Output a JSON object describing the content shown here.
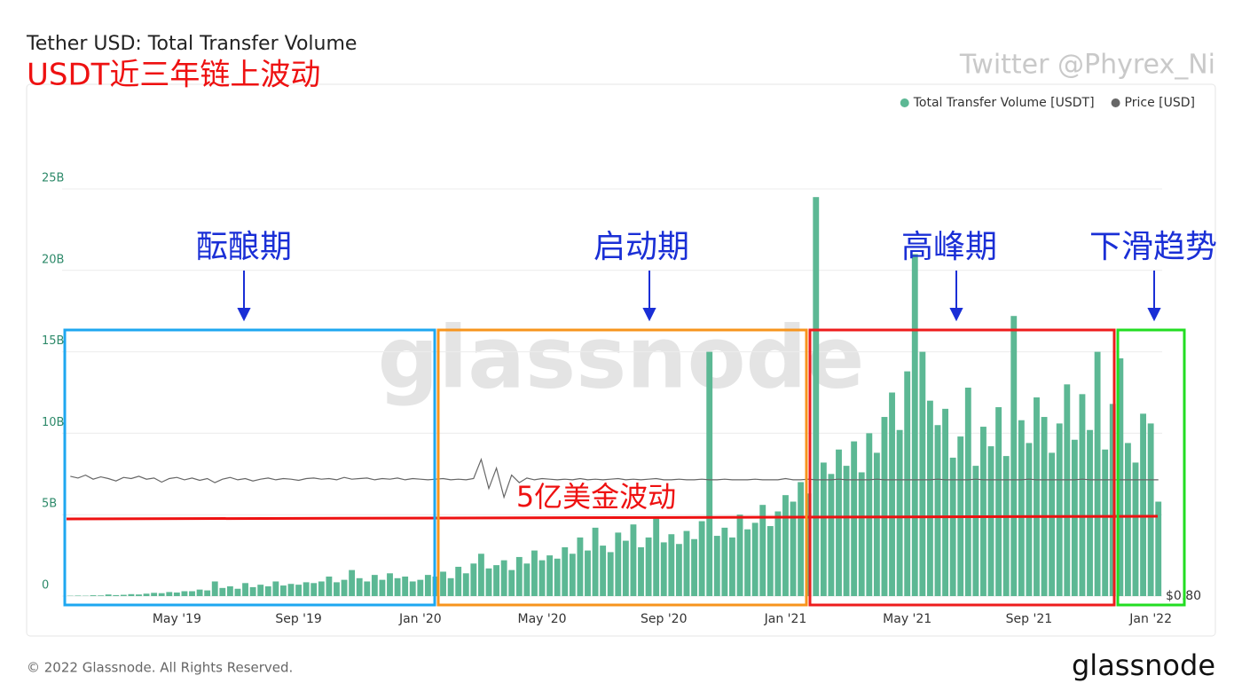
{
  "chart_data": {
    "type": "bar",
    "title": "Tether USD: Total Transfer Volume",
    "subtitle": "USDT近三年链上波动",
    "credit": "Twitter @Phyrex_Ni",
    "watermark": "glassnode",
    "footer": "© 2022 Glassnode. All Rights Reserved.",
    "logo": "glassnode",
    "annotations": [
      "酝酿期",
      "启动期",
      "高峰期",
      "下滑趋势",
      "5亿美金波动"
    ],
    "categories": [
      null,
      null,
      null,
      null,
      null,
      null,
      null,
      null,
      null,
      null,
      null,
      null,
      null,
      null,
      "May '19",
      null,
      null,
      null,
      null,
      null,
      null,
      null,
      null,
      null,
      null,
      null,
      null,
      null,
      null,
      null,
      "Sep '19",
      null,
      null,
      null,
      null,
      null,
      null,
      null,
      null,
      null,
      null,
      null,
      null,
      null,
      null,
      null,
      "Jan '20",
      null,
      null,
      null,
      null,
      null,
      null,
      null,
      null,
      null,
      null,
      null,
      null,
      null,
      null,
      null,
      "May '20",
      null,
      null,
      null,
      null,
      null,
      null,
      null,
      null,
      null,
      null,
      null,
      null,
      null,
      null,
      null,
      "Sep '20",
      null,
      null,
      null,
      null,
      null,
      null,
      null,
      null,
      null,
      null,
      null,
      null,
      null,
      null,
      null,
      "Jan '21",
      null,
      null,
      null,
      null,
      null,
      null,
      null,
      null,
      null,
      null,
      null,
      null,
      null,
      null,
      null,
      "May '21",
      null,
      null,
      null,
      null,
      null,
      null,
      null,
      null,
      null,
      null,
      null,
      null,
      null,
      null,
      null,
      "Sep '21",
      null,
      null,
      null,
      null,
      null,
      null,
      null,
      null,
      null,
      null,
      null,
      null,
      null,
      null,
      null,
      "Jan '22",
      null
    ],
    "series": [
      {
        "name": "Total Transfer Volume [USDT]",
        "color": "#5cb894",
        "values": [
          0.02,
          0.03,
          0.02,
          0.05,
          0.04,
          0.1,
          0.06,
          0.08,
          0.12,
          0.1,
          0.15,
          0.2,
          0.18,
          0.25,
          0.22,
          0.3,
          0.3,
          0.4,
          0.35,
          0.9,
          0.5,
          0.6,
          0.45,
          0.8,
          0.55,
          0.7,
          0.6,
          0.9,
          0.65,
          0.75,
          0.7,
          0.85,
          0.8,
          0.9,
          1.2,
          0.85,
          1.0,
          1.6,
          1.1,
          0.9,
          1.3,
          1.0,
          1.4,
          1.1,
          1.2,
          0.9,
          1.0,
          1.3,
          1.2,
          1.5,
          1.1,
          1.8,
          1.4,
          2.0,
          2.6,
          1.7,
          1.9,
          2.2,
          1.6,
          2.4,
          2.0,
          2.8,
          2.2,
          2.5,
          2.3,
          3.0,
          2.6,
          3.6,
          2.8,
          4.2,
          3.1,
          2.7,
          3.9,
          3.4,
          4.4,
          3.0,
          3.6,
          4.8,
          3.3,
          3.8,
          3.2,
          4.0,
          3.5,
          4.6,
          15.0,
          3.7,
          4.2,
          3.6,
          5.0,
          4.1,
          4.5,
          5.6,
          4.3,
          5.2,
          6.2,
          5.8,
          7.0,
          6.3,
          24.5,
          8.2,
          7.5,
          9.0,
          8.0,
          9.5,
          7.6,
          10.0,
          8.8,
          11.0,
          12.5,
          10.2,
          13.8,
          21.0,
          15.0,
          12.0,
          10.5,
          11.5,
          8.5,
          9.8,
          12.8,
          8.0,
          10.4,
          9.2,
          11.6,
          8.6,
          17.2,
          10.8,
          9.4,
          12.2,
          11.0,
          8.8,
          10.6,
          13.0,
          9.6,
          12.4,
          10.2,
          15.0,
          9.0,
          11.8,
          14.6,
          9.4,
          8.2,
          11.2,
          10.6,
          5.8
        ]
      },
      {
        "name": "Price [USD]",
        "color": "#666666",
        "axis": "y2",
        "values": [
          1.006,
          1.003,
          1.008,
          1.001,
          1.005,
          1.002,
          0.998,
          1.004,
          1.002,
          1.006,
          1.001,
          1.003,
          0.996,
          1.002,
          1.004,
          1.0,
          1.003,
          0.999,
          1.002,
          0.995,
          1.001,
          1.004,
          1.0,
          1.002,
          0.998,
          1.001,
          1.003,
          1.0,
          1.002,
          1.001,
          0.999,
          1.002,
          1.003,
          1.001,
          1.002,
          1.0,
          1.004,
          1.001,
          1.002,
          1.003,
          1.0,
          1.002,
          1.001,
          1.003,
          1.0,
          1.002,
          1.001,
          1.0,
          1.001,
          1.002,
          1.0,
          1.001,
          1.0,
          1.002,
          1.035,
          0.985,
          1.02,
          0.97,
          1.008,
          0.995,
          1.003,
          1.0,
          1.002,
          1.001,
          1.0,
          1.001,
          1.0,
          1.002,
          1.0,
          1.001,
          1.0,
          1.001,
          1.002,
          1.0,
          1.001,
          1.0,
          1.001,
          1.002,
          1.0,
          1.0,
          1.001,
          1.0,
          1.0,
          1.001,
          1.0,
          1.0,
          1.001,
          1.0,
          1.0,
          1.0,
          1.001,
          1.0,
          1.0,
          1.0,
          1.002,
          1.0,
          1.0,
          1.001,
          1.0,
          1.0,
          1.0,
          1.001,
          1.0,
          1.0,
          1.0,
          1.0,
          1.001,
          1.0,
          1.0,
          1.0,
          1.0,
          1.0,
          1.0,
          1.0,
          1.001,
          1.0,
          1.0,
          1.0,
          1.0,
          1.001,
          1.0,
          1.0,
          1.0,
          1.0,
          1.0,
          1.0,
          1.001,
          1.0,
          1.0,
          1.0,
          1.0,
          1.0,
          1.0,
          1.001,
          1.0,
          1.0,
          1.0,
          1.0,
          1.0,
          1.0,
          1.0,
          1.0,
          1.0,
          1.0
        ]
      }
    ],
    "ylim": [
      0,
      25
    ],
    "yticks": [
      0,
      {
        "value": 5,
        "label": "5B"
      },
      {
        "value": 10,
        "label": "10B"
      },
      {
        "value": 15,
        "label": "15B"
      },
      {
        "value": 20,
        "label": "20B"
      },
      {
        "value": 25,
        "label": "25B"
      }
    ],
    "y2lim": [
      0.8,
      1.5
    ],
    "y2ticks": [
      {
        "value": 0.8,
        "label": "$0.80"
      }
    ],
    "grid": true,
    "legend": "top-right"
  }
}
